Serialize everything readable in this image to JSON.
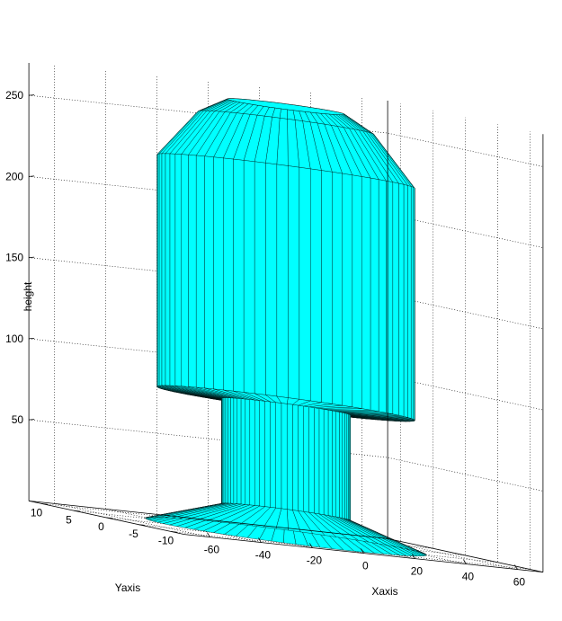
{
  "chart_data": {
    "type": "surface3d",
    "xlabel": "Xaxis",
    "ylabel": "Yaxis",
    "zlabel": "height",
    "z_ticks": [
      50,
      100,
      150,
      200,
      250
    ],
    "x_ticks": [
      -60,
      -40,
      -20,
      0,
      20,
      40,
      60
    ],
    "y_ticks": [
      10,
      5,
      0,
      -5,
      -10
    ],
    "zlim": [
      0,
      270
    ],
    "xlim": [
      -70,
      70
    ],
    "ylim": [
      -12,
      12
    ],
    "grid": true,
    "surface_color": "#00ffff",
    "edge_color": "#000000",
    "profile": [
      {
        "height": 0,
        "radius": 48
      },
      {
        "height": 15,
        "radius": 22
      },
      {
        "height": 80,
        "radius": 22
      },
      {
        "height": 82,
        "radius": 44
      },
      {
        "height": 225,
        "radius": 44
      },
      {
        "height": 255,
        "radius": 30
      },
      {
        "height": 265,
        "radius": 20
      }
    ]
  }
}
